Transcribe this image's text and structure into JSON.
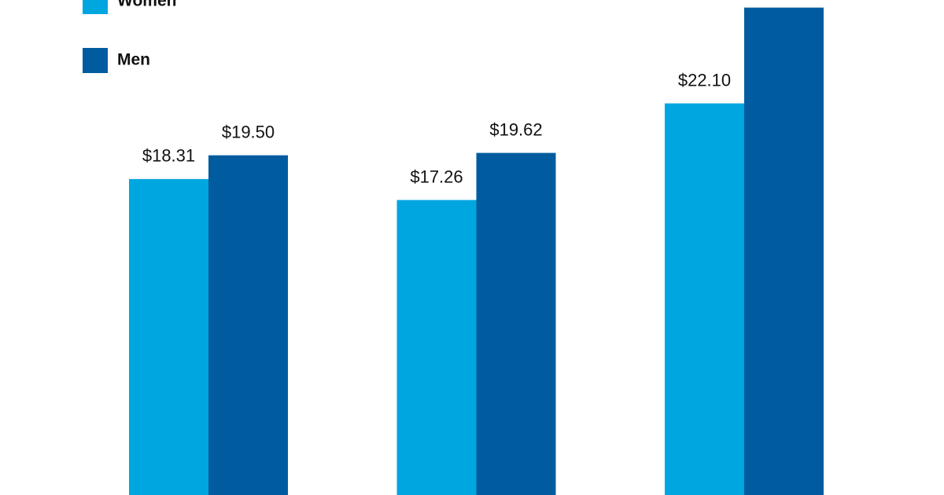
{
  "chart_data": {
    "type": "bar",
    "categories": [
      null,
      null,
      null
    ],
    "series": [
      {
        "name": "Women",
        "color": "#00a6e0",
        "values": [
          18.31,
          17.26,
          22.1
        ],
        "value_labels": [
          "$18.31",
          "$17.26",
          "$22.10"
        ]
      },
      {
        "name": "Men",
        "color": "#005c9f",
        "values": [
          19.5,
          19.62,
          26.9
        ],
        "value_labels": [
          "$19.50",
          "$19.62",
          null
        ]
      }
    ],
    "ylim": [
      2.48,
      27.28
    ],
    "grid": false,
    "legend": "top-left"
  }
}
